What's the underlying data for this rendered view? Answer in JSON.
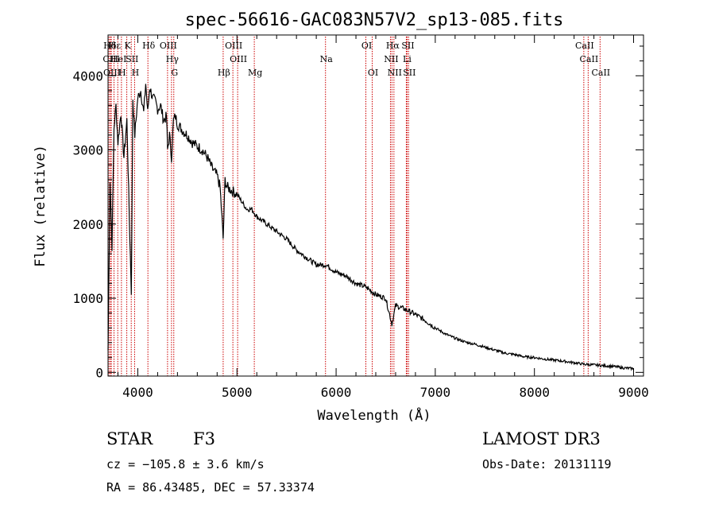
{
  "chart_data": {
    "type": "line",
    "title": "spec-56616-GAC083N57V2_sp13-085.fits",
    "xlabel": "Wavelength (Å)",
    "ylabel": "Flux (relative)",
    "xlim": [
      3700,
      9100
    ],
    "ylim": [
      -50,
      4550
    ],
    "xticks": [
      4000,
      5000,
      6000,
      7000,
      8000,
      9000
    ],
    "yticks": [
      0,
      1000,
      2000,
      3000,
      4000
    ],
    "series": [
      {
        "name": "flux",
        "x": [
          3700,
          3720,
          3740,
          3760,
          3780,
          3800,
          3830,
          3860,
          3890,
          3920,
          3935,
          3950,
          3970,
          4000,
          4030,
          4060,
          4080,
          4100,
          4120,
          4150,
          4180,
          4200,
          4230,
          4260,
          4290,
          4300,
          4320,
          4340,
          4360,
          4380,
          4400,
          4430,
          4460,
          4500,
          4550,
          4600,
          4650,
          4700,
          4750,
          4800,
          4830,
          4861,
          4880,
          4900,
          4950,
          5000,
          5050,
          5100,
          5150,
          5200,
          5300,
          5400,
          5500,
          5600,
          5700,
          5800,
          5900,
          6000,
          6100,
          6200,
          6300,
          6400,
          6500,
          6563,
          6600,
          6700,
          6800,
          6900,
          7000,
          7100,
          7200,
          7300,
          7400,
          7500,
          7600,
          7700,
          7800,
          7900,
          8000,
          8100,
          8200,
          8300,
          8400,
          8500,
          8600,
          8700,
          8800,
          8900,
          9000
        ],
        "y": [
          300,
          2600,
          1700,
          3300,
          3600,
          3100,
          3500,
          2900,
          3400,
          1800,
          1100,
          3700,
          3200,
          3700,
          3800,
          3500,
          3900,
          3500,
          3850,
          3700,
          3650,
          3550,
          3600,
          3400,
          3450,
          3000,
          3200,
          2900,
          3400,
          3450,
          3350,
          3300,
          3250,
          3200,
          3100,
          3050,
          3000,
          2900,
          2750,
          2650,
          2500,
          1800,
          2600,
          2500,
          2450,
          2400,
          2300,
          2200,
          2200,
          2100,
          2000,
          1900,
          1800,
          1650,
          1550,
          1450,
          1450,
          1350,
          1300,
          1200,
          1150,
          1050,
          1000,
          650,
          900,
          850,
          780,
          700,
          600,
          520,
          460,
          410,
          380,
          340,
          300,
          260,
          240,
          210,
          200,
          180,
          165,
          150,
          130,
          110,
          100,
          90,
          80,
          60,
          50
        ]
      }
    ],
    "lines": [
      {
        "label": "Hδ",
        "x": 3710,
        "row": 0
      },
      {
        "label": "CIII",
        "x": 3725,
        "row": 1
      },
      {
        "label": "OIII",
        "x": 3732,
        "row": 2
      },
      {
        "label": "Hε",
        "x": 3760,
        "row": 0
      },
      {
        "label": "HeI",
        "x": 3798,
        "row": 1
      },
      {
        "label": "H",
        "x": 3835,
        "row": 2
      },
      {
        "label": "K",
        "x": 3889,
        "row": 0
      },
      {
        "label": "SII",
        "x": 3934,
        "row": 1
      },
      {
        "label": "H",
        "x": 3968,
        "row": 2
      },
      {
        "label": "Hδ",
        "x": 4102,
        "row": 0
      },
      {
        "label": "OIII",
        "x": 4300,
        "row": 0
      },
      {
        "label": "Hγ",
        "x": 4340,
        "row": 1
      },
      {
        "label": "G",
        "x": 4363,
        "row": 2
      },
      {
        "label": "Hβ",
        "x": 4861,
        "row": 2
      },
      {
        "label": "OIII",
        "x": 4959,
        "row": 0
      },
      {
        "label": "OIII",
        "x": 5007,
        "row": 1
      },
      {
        "label": "Mg",
        "x": 5175,
        "row": 2
      },
      {
        "label": "Na",
        "x": 5893,
        "row": 1
      },
      {
        "label": "OI",
        "x": 6300,
        "row": 0
      },
      {
        "label": "OI",
        "x": 6364,
        "row": 2
      },
      {
        "label": "NII",
        "x": 6548,
        "row": 1
      },
      {
        "label": "Hα",
        "x": 6563,
        "row": 0
      },
      {
        "label": "NII",
        "x": 6583,
        "row": 2
      },
      {
        "label": "Li",
        "x": 6708,
        "row": 1
      },
      {
        "label": "SII",
        "x": 6716,
        "row": 0
      },
      {
        "label": "SII",
        "x": 6731,
        "row": 2
      },
      {
        "label": "CaII",
        "x": 8498,
        "row": 0
      },
      {
        "label": "CaII",
        "x": 8542,
        "row": 1
      },
      {
        "label": "CaII",
        "x": 8662,
        "row": 2
      }
    ],
    "line_color": "#cc0000"
  },
  "info": {
    "class": "STAR",
    "subclass": "F3",
    "survey": "LAMOST DR3",
    "cz": "cz = −105.8 ± 3.6 km/s",
    "obs_date": "Obs-Date: 20131119",
    "radec": "RA =  86.43485, DEC =  57.33374"
  }
}
